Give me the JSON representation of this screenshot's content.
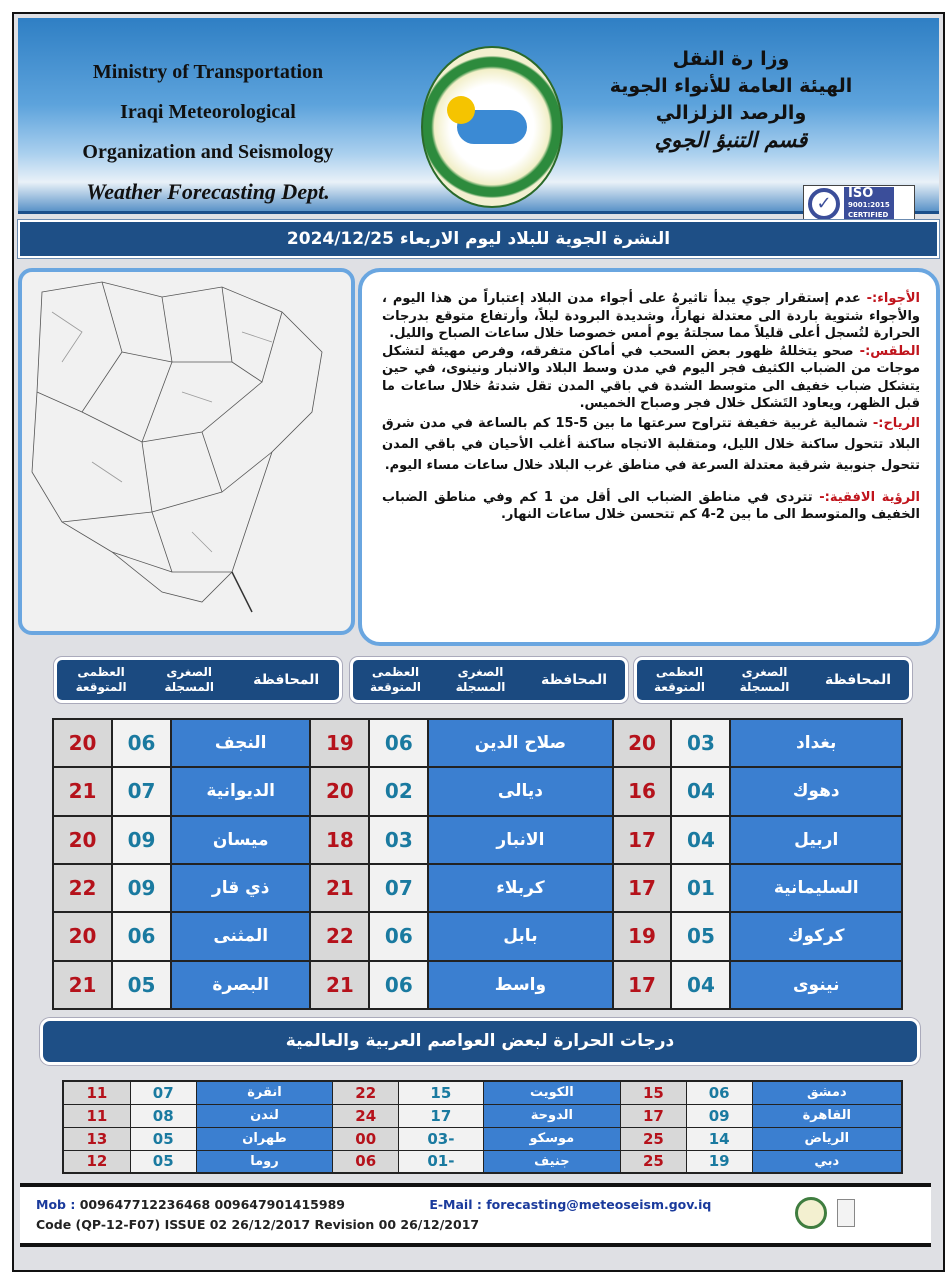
{
  "header": {
    "en_lines": [
      "Ministry of Transportation",
      "Iraqi Meteorological",
      "Organization and Seismology"
    ],
    "en_dept": "Weather Forecasting Dept.",
    "ar_lines": [
      "وزا رة النقل",
      "الهيئة العامة للأنواء الجوية",
      "والرصد الزلزالي"
    ],
    "ar_dept": "قسم التنبؤ الجوي",
    "iso": {
      "label": "ISO",
      "standard": "9001:2015",
      "certified": "CERTIFIED"
    }
  },
  "title": "النشرة الجوية للبلاد ليوم الاربعاء 2024/12/25",
  "forecast": [
    {
      "label": "الأجواء:-",
      "text": " عدم إستقرار جوي يبدأ تاثيرهُ على أجواء مدن البلاد إعتباراً من هذا اليوم ، والأجواء  شتوية باردة الى معتدلة نهاراً، وشديدة البرودة ليلاً،  وأرتفاع متوقع بدرجات الحرارة لتُسجل أعلى قليلاً مما سجلتهُ يوم أمس خصوصا خلال ساعات الصباح والليل."
    },
    {
      "label": "الطقس:-",
      "text": " صحو يتخللهُ ظهور بعض السحب في أماكن متفرقه،  وفرص مهيئة لتشكل موجات من الضباب الكثيف فجر اليوم  في مدن وسط البلاد والانبار ونينوى، في حين يتشكل ضباب خفيف الى متوسط الشدة في باقي المدن تقل شدتهُ خلال ساعات ما قبل الظهر،  ويعاود التَشكل خلال فجر وصباح الخميس."
    },
    {
      "label": "الرياح:-",
      "text": " شمالية غربية خفيفة تتراوح سرعتها ما بين 5-15 كم بالساعة في مدن شرق البلاد تتحول ساكنة خلال الليل،  ومتقلبة الاتجاه ساكنة أغلب الأحيان في باقي المدن تتحول جنوبية شرقية معتدلة السرعة في مناطق غرب البلاد خلال ساعات مساء اليوم."
    },
    {
      "label": "الرؤية الافقية:-",
      "text": " تتردى في مناطق الضباب الى أقل من 1 كم وفي مناطق الضباب الخفيف والمتوسط الى ما بين 2-4 كم تتحسن خلال ساعات النهار."
    }
  ],
  "table_headers": {
    "province": "المحافظة",
    "min": "الصغرى المسجلة",
    "max": "العظمى المتوقعة"
  },
  "provinces": [
    [
      {
        "name": "بغداد",
        "min": "03",
        "max": "20"
      },
      {
        "name": "صلاح الدين",
        "min": "06",
        "max": "19"
      },
      {
        "name": "النجف",
        "min": "06",
        "max": "20"
      }
    ],
    [
      {
        "name": "دهوك",
        "min": "04",
        "max": "16"
      },
      {
        "name": "ديالى",
        "min": "02",
        "max": "20"
      },
      {
        "name": "الديوانية",
        "min": "07",
        "max": "21"
      }
    ],
    [
      {
        "name": "اربيل",
        "min": "04",
        "max": "17"
      },
      {
        "name": "الانبار",
        "min": "03",
        "max": "18"
      },
      {
        "name": "ميسان",
        "min": "09",
        "max": "20"
      }
    ],
    [
      {
        "name": "السليمانية",
        "min": "01",
        "max": "17"
      },
      {
        "name": "كربلاء",
        "min": "07",
        "max": "21"
      },
      {
        "name": "ذي قار",
        "min": "09",
        "max": "22"
      }
    ],
    [
      {
        "name": "كركوك",
        "min": "05",
        "max": "19"
      },
      {
        "name": "بابل",
        "min": "06",
        "max": "22"
      },
      {
        "name": "المثنى",
        "min": "06",
        "max": "20"
      }
    ],
    [
      {
        "name": "نينوى",
        "min": "04",
        "max": "17"
      },
      {
        "name": "واسط",
        "min": "06",
        "max": "21"
      },
      {
        "name": "البصرة",
        "min": "05",
        "max": "21"
      }
    ]
  ],
  "capitals_title": "درجات الحرارة لبعض العواصم العربية والعالمية",
  "capitals": [
    [
      {
        "name": "دمشق",
        "min": "06",
        "max": "15"
      },
      {
        "name": "الكويت",
        "min": "15",
        "max": "22"
      },
      {
        "name": "انقرة",
        "min": "07",
        "max": "11"
      }
    ],
    [
      {
        "name": "القاهرة",
        "min": "09",
        "max": "17"
      },
      {
        "name": "الدوحة",
        "min": "17",
        "max": "24"
      },
      {
        "name": "لندن",
        "min": "08",
        "max": "11"
      }
    ],
    [
      {
        "name": "الرياض",
        "min": "14",
        "max": "25"
      },
      {
        "name": "موسكو",
        "min": "-03",
        "max": "00"
      },
      {
        "name": "طهران",
        "min": "05",
        "max": "13"
      }
    ],
    [
      {
        "name": "دبي",
        "min": "19",
        "max": "25"
      },
      {
        "name": "جنيف",
        "min": "-01",
        "max": "06"
      },
      {
        "name": "روما",
        "min": "05",
        "max": "12"
      }
    ]
  ],
  "footer": {
    "mob_label": "Mob :",
    "mob": "009647712236468   009647901415989",
    "email_label": "E-Mail :",
    "email": "forecasting@meteoseism.gov.iq",
    "code": "Code (QP-12-F07)  ISSUE 02  26/12/2017 Revision  00  26/12/2017"
  },
  "colors": {
    "brand_blue": "#1e4f86",
    "cell_blue": "#3b7fd0",
    "max_red": "#b5121b",
    "min_teal": "#1a7aa0"
  }
}
